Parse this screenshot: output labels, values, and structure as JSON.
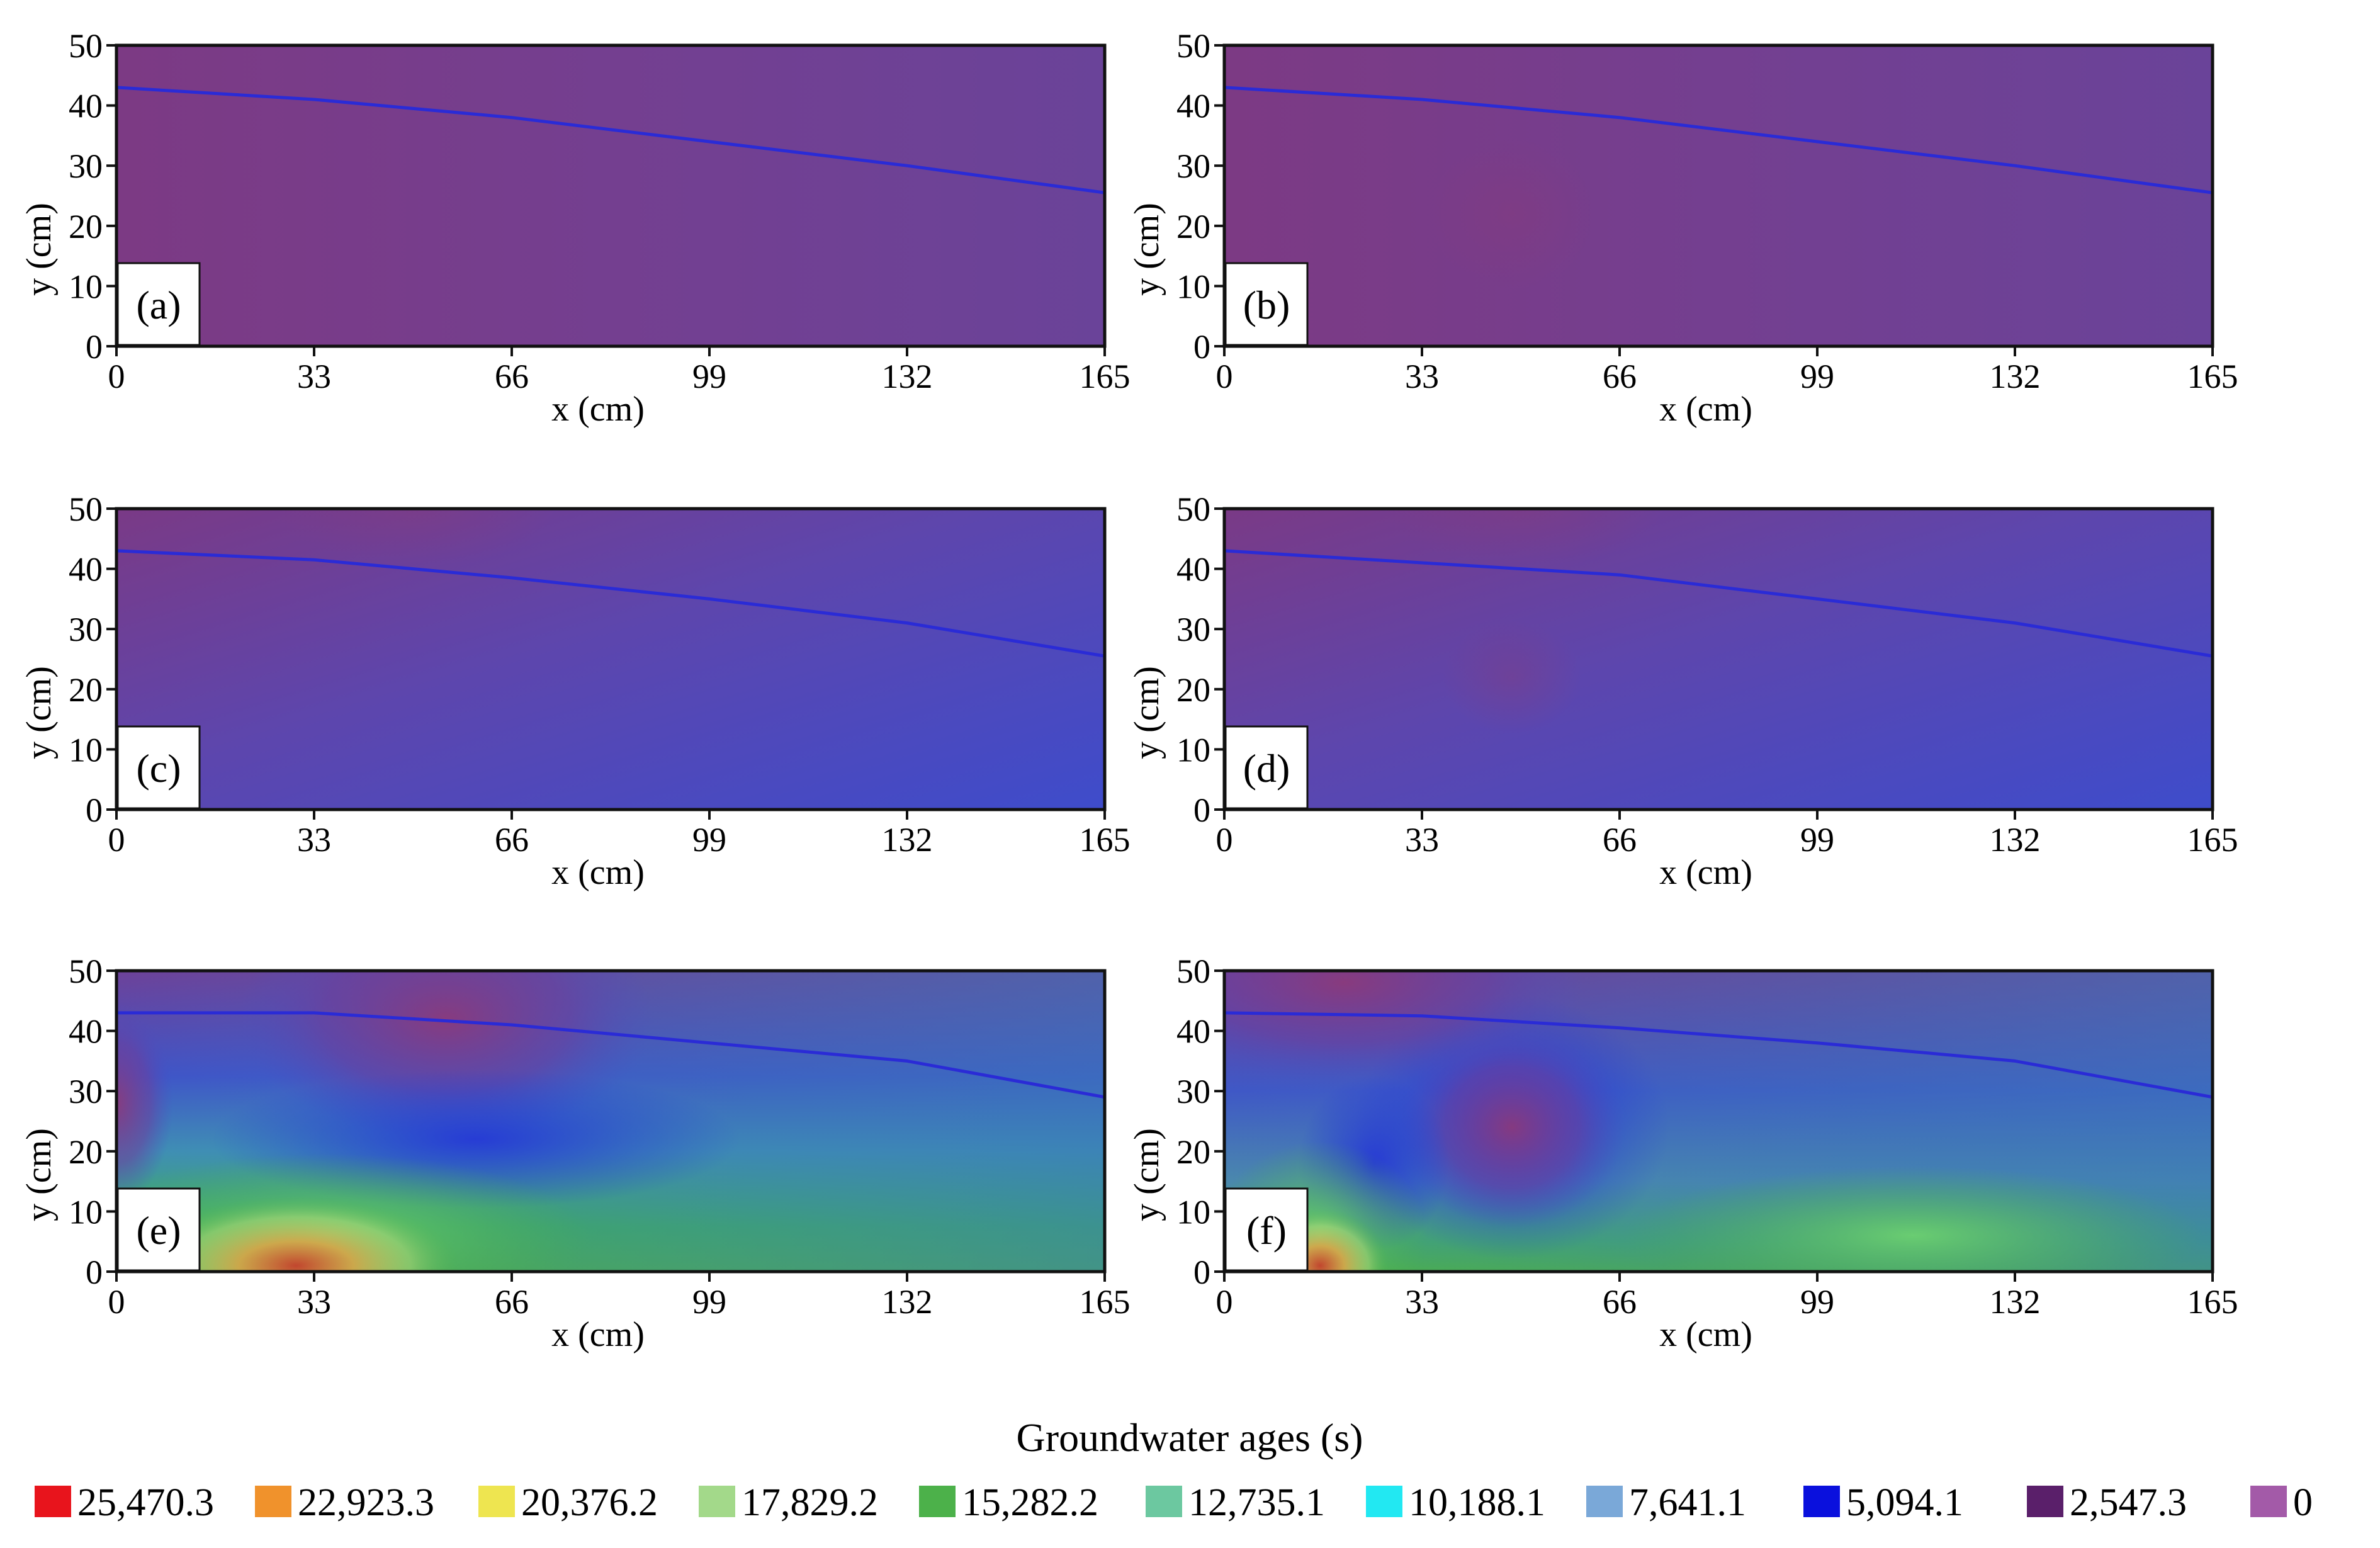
{
  "chart_data": [
    {
      "type": "heatmap",
      "panel_label": "(a)",
      "xlabel": "x (cm)",
      "ylabel": "y (cm)",
      "xlim": [
        0,
        165
      ],
      "ylim": [
        0,
        50
      ],
      "x_ticks": [
        "0",
        "33",
        "66",
        "99",
        "132",
        "165"
      ],
      "y_ticks": [
        "0",
        "10",
        "20",
        "30",
        "40",
        "50"
      ],
      "water_table": {
        "x": [
          0,
          33,
          66,
          99,
          132,
          165
        ],
        "y": [
          43,
          41,
          38,
          34,
          30,
          25.5
        ]
      },
      "field_color": "#74408f"
    },
    {
      "type": "heatmap",
      "panel_label": "(b)",
      "xlabel": "x (cm)",
      "ylabel": "y (cm)",
      "xlim": [
        0,
        165
      ],
      "ylim": [
        0,
        50
      ],
      "x_ticks": [
        "0",
        "33",
        "66",
        "99",
        "132",
        "165"
      ],
      "y_ticks": [
        "0",
        "10",
        "20",
        "30",
        "40",
        "50"
      ],
      "water_table": {
        "x": [
          0,
          33,
          66,
          99,
          132,
          165
        ],
        "y": [
          43,
          41,
          38,
          34,
          30,
          25.5
        ]
      },
      "field_color": "#74408f"
    },
    {
      "type": "heatmap",
      "panel_label": "(c)",
      "xlabel": "x (cm)",
      "ylabel": "y (cm)",
      "xlim": [
        0,
        165
      ],
      "ylim": [
        0,
        50
      ],
      "x_ticks": [
        "0",
        "33",
        "66",
        "99",
        "132",
        "165"
      ],
      "y_ticks": [
        "0",
        "10",
        "20",
        "30",
        "40",
        "50"
      ],
      "water_table": {
        "x": [
          0,
          33,
          66,
          99,
          132,
          165
        ],
        "y": [
          43,
          41.5,
          38.5,
          35,
          31,
          25.5
        ]
      },
      "field_color": "#5a45b4"
    },
    {
      "type": "heatmap",
      "panel_label": "(d)",
      "xlabel": "x (cm)",
      "ylabel": "y (cm)",
      "xlim": [
        0,
        165
      ],
      "ylim": [
        0,
        50
      ],
      "x_ticks": [
        "0",
        "33",
        "66",
        "99",
        "132",
        "165"
      ],
      "y_ticks": [
        "0",
        "10",
        "20",
        "30",
        "40",
        "50"
      ],
      "water_table": {
        "x": [
          0,
          33,
          66,
          99,
          132,
          165
        ],
        "y": [
          43,
          41,
          39,
          35,
          31,
          25.5
        ]
      },
      "field_color": "#5a45b4"
    },
    {
      "type": "heatmap",
      "panel_label": "(e)",
      "xlabel": "x (cm)",
      "ylabel": "y (cm)",
      "xlim": [
        0,
        165
      ],
      "ylim": [
        0,
        50
      ],
      "x_ticks": [
        "0",
        "33",
        "66",
        "99",
        "132",
        "165"
      ],
      "y_ticks": [
        "0",
        "10",
        "20",
        "30",
        "40",
        "50"
      ],
      "water_table": {
        "x": [
          0,
          33,
          66,
          99,
          132,
          165
        ],
        "y": [
          43,
          43,
          41,
          38,
          35,
          29
        ]
      },
      "field_color": "#3f8a70"
    },
    {
      "type": "heatmap",
      "panel_label": "(f)",
      "xlabel": "x (cm)",
      "ylabel": "y (cm)",
      "xlim": [
        0,
        165
      ],
      "ylim": [
        0,
        50
      ],
      "x_ticks": [
        "0",
        "33",
        "66",
        "99",
        "132",
        "165"
      ],
      "y_ticks": [
        "0",
        "10",
        "20",
        "30",
        "40",
        "50"
      ],
      "water_table": {
        "x": [
          0,
          33,
          66,
          99,
          132,
          165
        ],
        "y": [
          43,
          42.5,
          40.5,
          38,
          35,
          29
        ]
      },
      "field_color": "#3f8a70"
    }
  ],
  "legend": {
    "title": "Groundwater ages (s)",
    "items": [
      {
        "label": "25,470.3",
        "color": "#e8141c"
      },
      {
        "label": "22,923.3",
        "color": "#f0922c"
      },
      {
        "label": "20,376.2",
        "color": "#eee550"
      },
      {
        "label": "17,829.2",
        "color": "#a3d98a"
      },
      {
        "label": "15,282.2",
        "color": "#4cb14a"
      },
      {
        "label": "12,735.1",
        "color": "#6cc8a0"
      },
      {
        "label": "10,188.1",
        "color": "#22e8f2"
      },
      {
        "label": "7,641.1",
        "color": "#7aa8d8"
      },
      {
        "label": "5,094.1",
        "color": "#0a10dd"
      },
      {
        "label": "2,547.3",
        "color": "#5a1f6a"
      },
      {
        "label": "0",
        "color": "#a35aa8"
      }
    ]
  }
}
